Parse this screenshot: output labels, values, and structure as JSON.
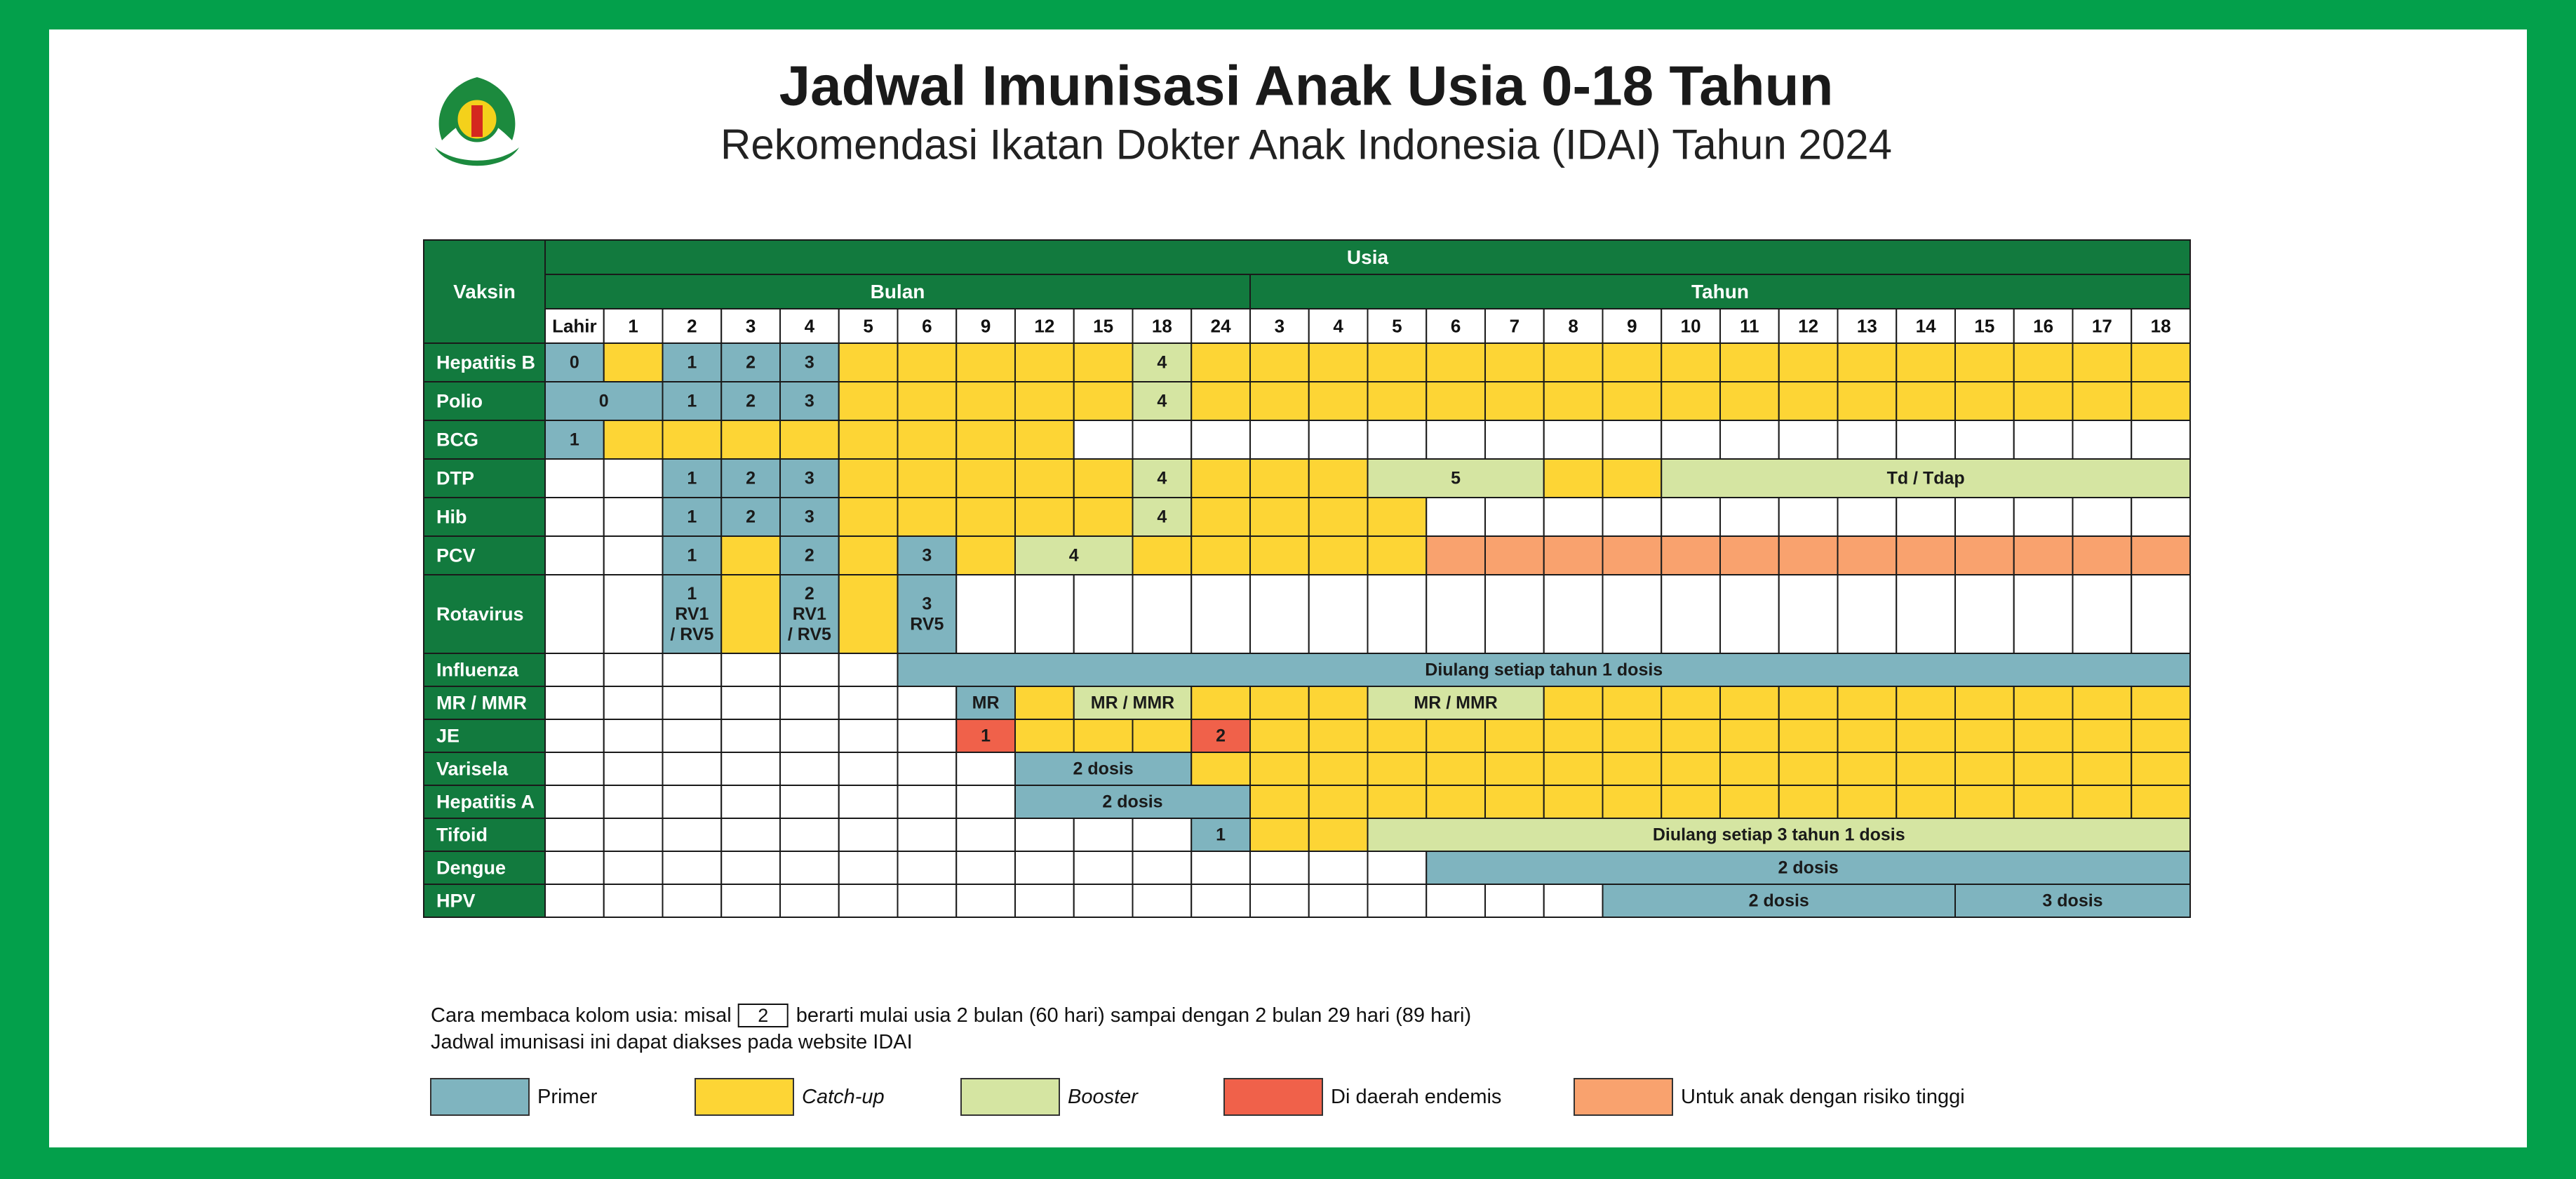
{
  "title": "Jadwal Imunisasi Anak Usia 0-18 Tahun",
  "subtitle": "Rekomendasi Ikatan Dokter Anak Indonesia (IDAI) Tahun 2024",
  "table": {
    "vaccine_header": "Vaksin",
    "age_header": "Usia",
    "groups": [
      {
        "label": "Bulan",
        "span": 12
      },
      {
        "label": "Tahun",
        "span": 16
      }
    ],
    "columns": [
      "Lahir",
      "1",
      "2",
      "3",
      "4",
      "5",
      "6",
      "9",
      "12",
      "15",
      "18",
      "24",
      "3",
      "4",
      "5",
      "6",
      "7",
      "8",
      "9",
      "10",
      "11",
      "12",
      "13",
      "14",
      "15",
      "16",
      "17",
      "18"
    ],
    "rows": [
      {
        "name": "Hepatitis B",
        "cells": [
          {
            "span": 1,
            "fill": "#7fb4bf",
            "label": "0"
          },
          {
            "span": 1,
            "fill": "#fdd535"
          },
          {
            "span": 1,
            "fill": "#7fb4bf",
            "label": "1"
          },
          {
            "span": 1,
            "fill": "#7fb4bf",
            "label": "2"
          },
          {
            "span": 1,
            "fill": "#7fb4bf",
            "label": "3"
          },
          {
            "span": 5,
            "fill": "#fdd535"
          },
          {
            "span": 1,
            "fill": "#d5e5a2",
            "label": "4"
          },
          {
            "span": 17,
            "fill": "#fdd535"
          }
        ]
      },
      {
        "name": "Polio",
        "cells": [
          {
            "span": 2,
            "fill": "#7fb4bf",
            "label": "0"
          },
          {
            "span": 1,
            "fill": "#7fb4bf",
            "label": "1"
          },
          {
            "span": 1,
            "fill": "#7fb4bf",
            "label": "2"
          },
          {
            "span": 1,
            "fill": "#7fb4bf",
            "label": "3"
          },
          {
            "span": 5,
            "fill": "#fdd535"
          },
          {
            "span": 1,
            "fill": "#d5e5a2",
            "label": "4"
          },
          {
            "span": 17,
            "fill": "#fdd535"
          }
        ]
      },
      {
        "name": "BCG",
        "cells": [
          {
            "span": 1,
            "fill": "#7fb4bf",
            "label": "1"
          },
          {
            "span": 8,
            "fill": "#fdd535"
          },
          {
            "span": 19,
            "fill": "#ffffff"
          }
        ]
      },
      {
        "name": "DTP",
        "cells": [
          {
            "span": 2,
            "fill": "#ffffff"
          },
          {
            "span": 1,
            "fill": "#7fb4bf",
            "label": "1"
          },
          {
            "span": 1,
            "fill": "#7fb4bf",
            "label": "2"
          },
          {
            "span": 1,
            "fill": "#7fb4bf",
            "label": "3"
          },
          {
            "span": 5,
            "fill": "#fdd535"
          },
          {
            "span": 1,
            "fill": "#d5e5a2",
            "label": "4"
          },
          {
            "span": 3,
            "fill": "#fdd535"
          },
          {
            "span": 3,
            "fill": "#d5e5a2",
            "label": "5"
          },
          {
            "span": 2,
            "fill": "#fdd535"
          },
          {
            "span": 9,
            "fill": "#d5e5a2",
            "label": "Td / Tdap"
          }
        ]
      },
      {
        "name": "Hib",
        "cells": [
          {
            "span": 2,
            "fill": "#ffffff"
          },
          {
            "span": 1,
            "fill": "#7fb4bf",
            "label": "1"
          },
          {
            "span": 1,
            "fill": "#7fb4bf",
            "label": "2"
          },
          {
            "span": 1,
            "fill": "#7fb4bf",
            "label": "3"
          },
          {
            "span": 5,
            "fill": "#fdd535"
          },
          {
            "span": 1,
            "fill": "#d5e5a2",
            "label": "4"
          },
          {
            "span": 4,
            "fill": "#fdd535"
          },
          {
            "span": 13,
            "fill": "#ffffff"
          }
        ]
      },
      {
        "name": "PCV",
        "cells": [
          {
            "span": 2,
            "fill": "#ffffff"
          },
          {
            "span": 1,
            "fill": "#7fb4bf",
            "label": "1"
          },
          {
            "span": 1,
            "fill": "#fdd535"
          },
          {
            "span": 1,
            "fill": "#7fb4bf",
            "label": "2"
          },
          {
            "span": 1,
            "fill": "#fdd535"
          },
          {
            "span": 1,
            "fill": "#7fb4bf",
            "label": "3"
          },
          {
            "span": 1,
            "fill": "#fdd535"
          },
          {
            "span": 2,
            "fill": "#d5e5a2",
            "label": "4"
          },
          {
            "span": 5,
            "fill": "#fdd535"
          },
          {
            "span": 13,
            "fill": "#f9a26e"
          }
        ]
      },
      {
        "name": "Rotavirus",
        "cells": [
          {
            "span": 2,
            "fill": "#ffffff"
          },
          {
            "span": 1,
            "fill": "#7fb4bf",
            "label": "1\nRV1\n/ RV5"
          },
          {
            "span": 1,
            "fill": "#fdd535"
          },
          {
            "span": 1,
            "fill": "#7fb4bf",
            "label": "2\nRV1\n/ RV5"
          },
          {
            "span": 1,
            "fill": "#fdd535"
          },
          {
            "span": 1,
            "fill": "#7fb4bf",
            "label": "3\nRV5"
          },
          {
            "span": 21,
            "fill": "#ffffff"
          }
        ]
      },
      {
        "name": "Influenza",
        "cells": [
          {
            "span": 6,
            "fill": "#ffffff"
          },
          {
            "span": 22,
            "fill": "#7fb4bf",
            "label": "Diulang setiap tahun 1 dosis"
          }
        ]
      },
      {
        "name": "MR / MMR",
        "cells": [
          {
            "span": 7,
            "fill": "#ffffff"
          },
          {
            "span": 1,
            "fill": "#7fb4bf",
            "label": "MR"
          },
          {
            "span": 1,
            "fill": "#fdd535"
          },
          {
            "span": 2,
            "fill": "#d5e5a2",
            "label": "MR / MMR"
          },
          {
            "span": 3,
            "fill": "#fdd535"
          },
          {
            "span": 3,
            "fill": "#d5e5a2",
            "label": "MR / MMR"
          },
          {
            "span": 11,
            "fill": "#fdd535"
          }
        ]
      },
      {
        "name": "JE",
        "cells": [
          {
            "span": 7,
            "fill": "#ffffff"
          },
          {
            "span": 1,
            "fill": "#f0614a",
            "label": "1"
          },
          {
            "span": 3,
            "fill": "#fdd535"
          },
          {
            "span": 1,
            "fill": "#f0614a",
            "label": "2"
          },
          {
            "span": 16,
            "fill": "#fdd535"
          }
        ]
      },
      {
        "name": "Varisela",
        "cells": [
          {
            "span": 8,
            "fill": "#ffffff"
          },
          {
            "span": 3,
            "fill": "#7fb4bf",
            "label": "2 dosis"
          },
          {
            "span": 17,
            "fill": "#fdd535"
          }
        ]
      },
      {
        "name": "Hepatitis A",
        "cells": [
          {
            "span": 8,
            "fill": "#ffffff"
          },
          {
            "span": 4,
            "fill": "#7fb4bf",
            "label": "2 dosis"
          },
          {
            "span": 16,
            "fill": "#fdd535"
          }
        ]
      },
      {
        "name": "Tifoid",
        "cells": [
          {
            "span": 11,
            "fill": "#ffffff"
          },
          {
            "span": 1,
            "fill": "#7fb4bf",
            "label": "1"
          },
          {
            "span": 2,
            "fill": "#fdd535"
          },
          {
            "span": 14,
            "fill": "#d5e5a2",
            "label": "Diulang setiap 3 tahun 1 dosis"
          }
        ]
      },
      {
        "name": "Dengue",
        "cells": [
          {
            "span": 15,
            "fill": "#ffffff"
          },
          {
            "span": 13,
            "fill": "#7fb4bf",
            "label": "2 dosis"
          }
        ]
      },
      {
        "name": "HPV",
        "cells": [
          {
            "span": 18,
            "fill": "#ffffff"
          },
          {
            "span": 6,
            "fill": "#7fb4bf",
            "label": "2 dosis"
          },
          {
            "span": 4,
            "fill": "#7fb4bf",
            "label": "3 dosis"
          }
        ]
      }
    ]
  },
  "footnote": {
    "before": "Cara membaca kolom usia: misal",
    "example": "2",
    "after": "berarti mulai usia 2 bulan (60 hari) sampai dengan 2 bulan 29 hari (89 hari)",
    "line2": "Jadwal imunisasi ini dapat diakses pada website IDAI"
  },
  "legend": [
    {
      "label": "Primer",
      "color": "#7fb4bf"
    },
    {
      "label": "Catch-up",
      "color": "#fdd535",
      "italic": true
    },
    {
      "label": "Booster",
      "color": "#d5e5a2",
      "italic": true
    },
    {
      "label": "Di daerah endemis",
      "color": "#f0614a"
    },
    {
      "label": "Untuk anak dengan risiko tinggi",
      "color": "#f9a26e"
    }
  ]
}
